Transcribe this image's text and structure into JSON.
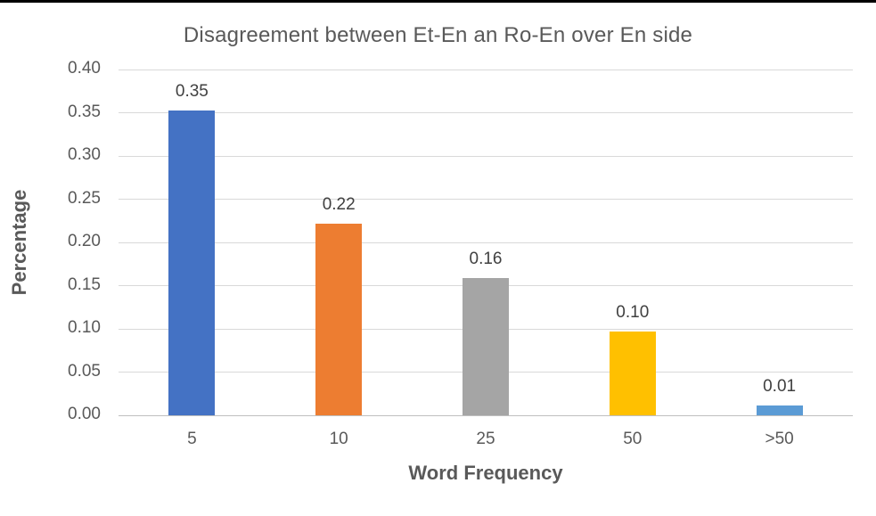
{
  "chart_data": {
    "type": "bar",
    "title": "Disagreement between Et-En an Ro-En over En side",
    "xlabel": "Word Frequency",
    "ylabel": "Percentage",
    "categories": [
      "5",
      "10",
      "25",
      "50",
      ">50"
    ],
    "values": [
      0.353,
      0.222,
      0.159,
      0.097,
      0.011
    ],
    "data_labels": [
      "0.35",
      "0.22",
      "0.16",
      "0.10",
      "0.01"
    ],
    "ytick_labels": [
      "0.00",
      "0.05",
      "0.10",
      "0.15",
      "0.20",
      "0.25",
      "0.30",
      "0.35",
      "0.40"
    ],
    "ylim": [
      0,
      0.4
    ],
    "ytick_step": 0.05,
    "grid": true,
    "legend_position": "none",
    "bar_colors": [
      "#4472C4",
      "#ED7D31",
      "#A5A5A5",
      "#FFC000",
      "#5B9BD5"
    ],
    "style_colors": {
      "gridline": "#d9d9d9",
      "axis_line": "#bfbfbf",
      "tick_text": "#595959",
      "title_text": "#595959",
      "data_label_text": "#404040",
      "top_border": "#000000"
    }
  }
}
